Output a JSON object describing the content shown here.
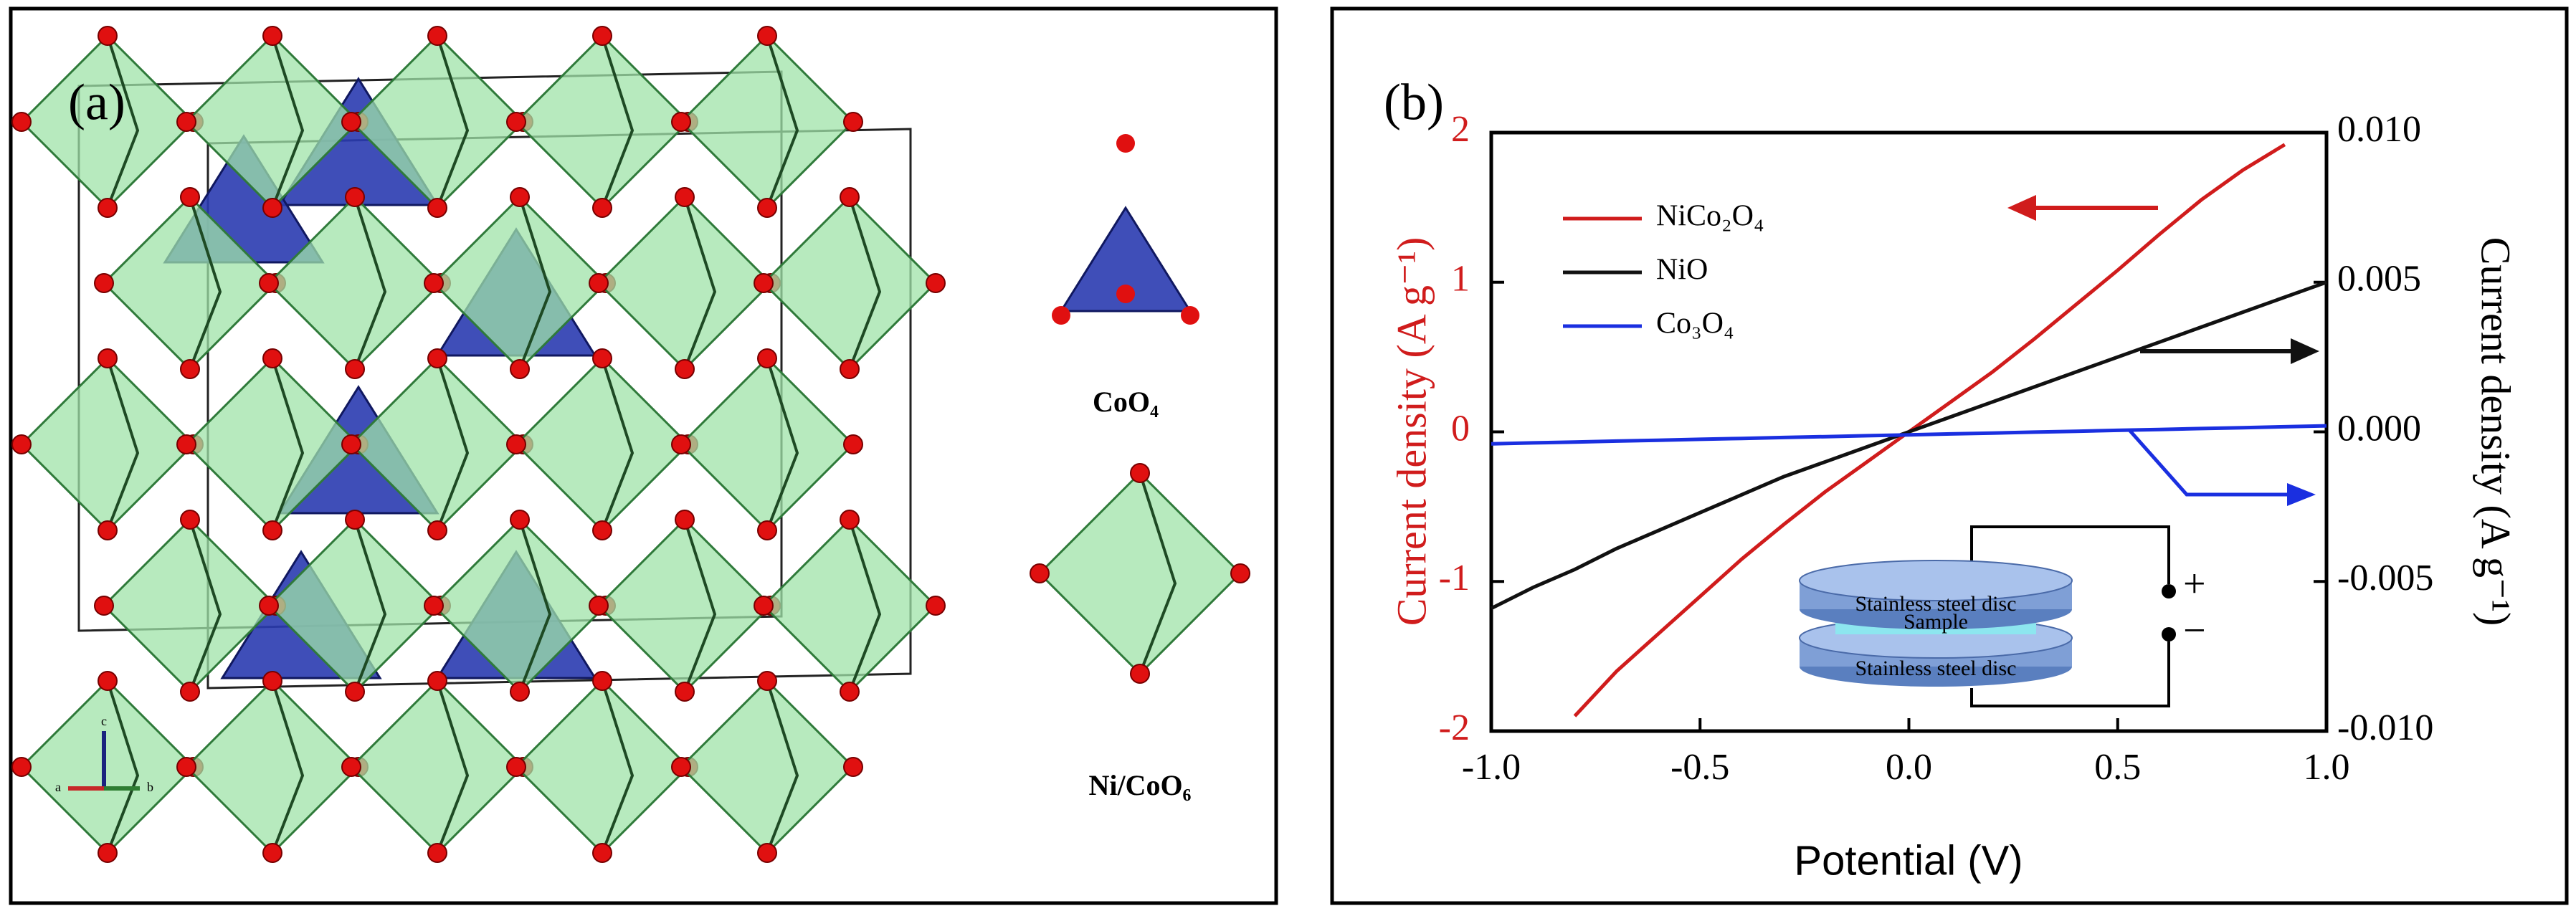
{
  "panel_a": {
    "label": "(a)",
    "polyhedra": [
      "CoO₄",
      "Ni/CoO₆"
    ],
    "axes": [
      "a",
      "b",
      "c"
    ]
  },
  "chart_data": {
    "type": "line",
    "panel_label": "(b)",
    "x_label": "Potential (V)",
    "y_label": "Current density (A g⁻¹)",
    "y2_label": "Current density (A g⁻¹)",
    "x": [
      -1,
      -0.9,
      -0.8,
      -0.7,
      -0.6,
      -0.5,
      -0.4,
      -0.3,
      -0.2,
      -0.1,
      0,
      0.1,
      0.2,
      0.3,
      0.4,
      0.5,
      0.6,
      0.7,
      0.8,
      0.9,
      1
    ],
    "series": [
      {
        "name": "NiCo₂O₄",
        "color": "#d01c1c",
        "values": [
          null,
          null,
          -1.9,
          -1.6,
          -1.35,
          -1.1,
          -0.85,
          -0.62,
          -0.4,
          -0.2,
          0,
          0.2,
          0.4,
          0.62,
          0.85,
          1.08,
          1.32,
          1.55,
          1.75,
          1.92,
          null
        ]
      },
      {
        "name": "NiO",
        "color": "#111111",
        "axis": "y2",
        "values": [
          -0.0059,
          -0.0052,
          -0.0046,
          -0.0039,
          -0.0033,
          -0.0027,
          -0.0021,
          -0.0015,
          -0.001,
          -0.0005,
          0,
          0.0005,
          0.001,
          0.0015,
          0.002,
          0.0025,
          0.003,
          0.0035,
          0.004,
          0.0045,
          0.005
        ]
      },
      {
        "name": "Co₃O₄",
        "color": "#1a2fe0",
        "axis": "y2",
        "values": [
          -0.0004,
          -0.00037,
          -0.00034,
          -0.00031,
          -0.00028,
          -0.00025,
          -0.00022,
          -0.00019,
          -0.00016,
          -0.00013,
          -0.0001,
          -7e-05,
          -4e-05,
          -1e-05,
          2e-05,
          5e-05,
          8e-05,
          0.00011,
          0.00014,
          0.00017,
          0.0002
        ]
      }
    ],
    "xlim": [
      -1,
      1
    ],
    "xticks": [
      {
        "value": -1,
        "label": "-1.0"
      },
      -0.5,
      {
        "value": 0,
        "label": "0.0"
      },
      0.5,
      {
        "value": 1,
        "label": "1.0"
      }
    ],
    "ylim": [
      -2,
      2
    ],
    "yticks": [
      -2,
      -1,
      0,
      1,
      2
    ],
    "y2lim": [
      -0.01,
      0.01
    ],
    "y2ticks": [
      {
        "value": -0.01,
        "label": "-0.010"
      },
      -0.005,
      {
        "value": 0,
        "label": "0.000"
      },
      0.005,
      {
        "value": 0.01,
        "label": "0.010"
      }
    ],
    "y_color": "#d01c1c",
    "grid": false,
    "inset": {
      "top_disc": "Stainless steel disc",
      "sample": "Sample",
      "bottom_disc": "Stainless steel disc",
      "plus": "+",
      "minus": "−"
    }
  }
}
